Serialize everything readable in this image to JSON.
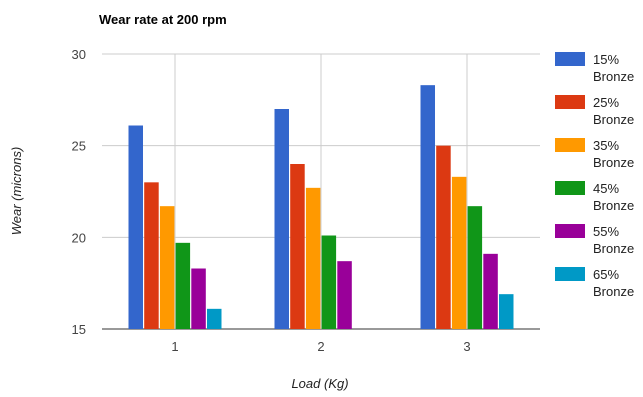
{
  "chart_data": {
    "type": "bar",
    "title": "Wear rate at 200 rpm",
    "xlabel": "Load (Kg)",
    "ylabel": "Wear (microns)",
    "categories": [
      "1",
      "2",
      "3"
    ],
    "ylim": [
      15,
      30
    ],
    "yticks": [
      "15",
      "20",
      "25",
      "30"
    ],
    "grid": true,
    "legend_position": "right",
    "series": [
      {
        "name": "15% Bronze",
        "legend_lines": [
          "15%",
          "Bronze"
        ],
        "color": "#3366cc",
        "values": [
          26.1,
          27.0,
          28.3
        ]
      },
      {
        "name": "25% Bronze",
        "legend_lines": [
          "25%",
          "Bronze"
        ],
        "color": "#dc3912",
        "values": [
          23.0,
          24.0,
          25.0
        ]
      },
      {
        "name": "35% Bronze",
        "legend_lines": [
          "35%",
          "Bronze"
        ],
        "color": "#ff9900",
        "values": [
          21.7,
          22.7,
          23.3
        ]
      },
      {
        "name": "45% Bronze",
        "legend_lines": [
          "45%",
          "Bronze"
        ],
        "color": "#109618",
        "values": [
          19.7,
          20.1,
          21.7
        ]
      },
      {
        "name": "55% Bronze",
        "legend_lines": [
          "55%",
          "Bronze"
        ],
        "color": "#990099",
        "values": [
          18.3,
          18.7,
          19.1
        ]
      },
      {
        "name": "65% Bronze",
        "legend_lines": [
          "65%",
          "Bronze"
        ],
        "color": "#0099c6",
        "values": [
          16.1,
          null,
          16.9
        ]
      }
    ]
  }
}
